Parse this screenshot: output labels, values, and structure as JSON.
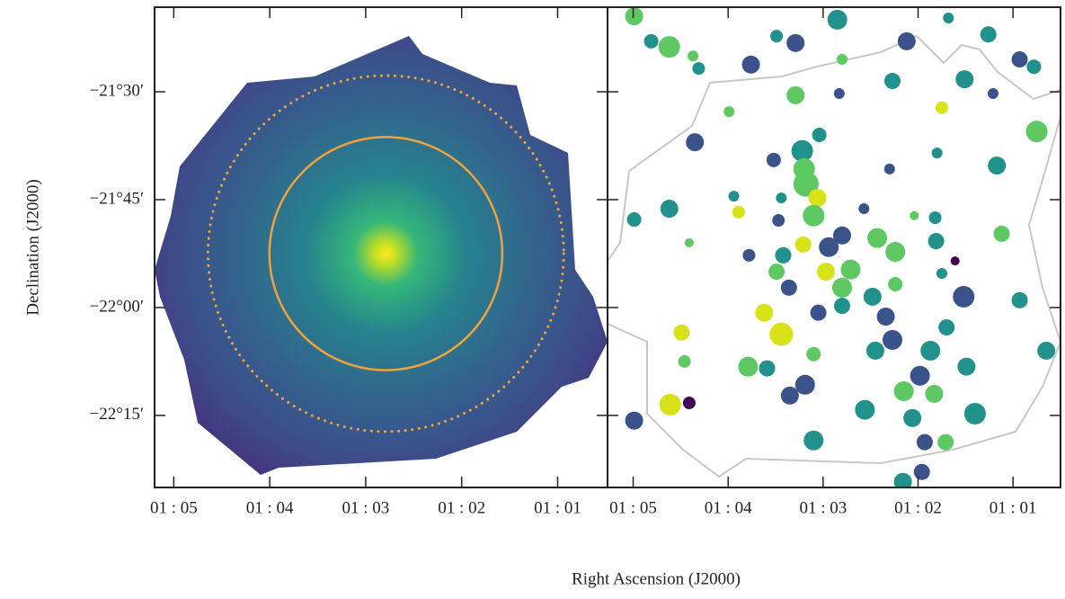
{
  "xlabel": "Right Ascension (J2000)",
  "chart_data": [
    {
      "type": "image",
      "ylabel": "Declination (J2000)",
      "xlim": [
        65.2,
        60.48
      ],
      "ylim": [
        -22.417,
        -21.304
      ],
      "xticks": [
        {
          "value": 65,
          "label": "01 : 05"
        },
        {
          "value": 64,
          "label": "01 : 04"
        },
        {
          "value": 63,
          "label": "01 : 03"
        },
        {
          "value": 62,
          "label": "01 : 02"
        },
        {
          "value": 61,
          "label": "01 : 01"
        }
      ],
      "yticks": [
        {
          "value": -21.5,
          "label": "−21°30′"
        },
        {
          "value": -21.75,
          "label": "−21°45′"
        },
        {
          "value": -22,
          "label": "−22°00′"
        },
        {
          "value": -22.25,
          "label": "−22°15′"
        }
      ],
      "circles": {
        "x": [
          62.79,
          62.79
        ],
        "y": [
          -21.875,
          -21.875
        ],
        "radius": [
          0.27,
          0.4125
        ],
        "style": [
          "solid",
          "dotted"
        ],
        "color": "#f2a23a"
      }
    },
    {
      "type": "scatter",
      "xlim": [
        65.27,
        60.5
      ],
      "ylim": [
        -22.417,
        -21.304
      ],
      "xticks": [
        {
          "value": 65,
          "label": "01 : 05"
        },
        {
          "value": 64,
          "label": "01 : 04"
        },
        {
          "value": 63,
          "label": "01 : 03"
        },
        {
          "value": 62,
          "label": "01 : 02"
        },
        {
          "value": 61,
          "label": "01 : 01"
        }
      ],
      "x": [
        64.99,
        64.62,
        64.81,
        64.37,
        64.31,
        63.76,
        63.49,
        63.29,
        62.85,
        62.8,
        62.12,
        61.68,
        61.26,
        60.93,
        60.78,
        62.27,
        61.51,
        61.21,
        63.29,
        62.83,
        61.75,
        60.75,
        63.99,
        64.35,
        63.04,
        63.22,
        63.52,
        61.8,
        61.17,
        62.3,
        63.2,
        63.18,
        63.06,
        63.44,
        63.94,
        64.62,
        63.89,
        64.99,
        64.41,
        63.47,
        63.1,
        62.57,
        62.04,
        61.82,
        61.12,
        61.81,
        62.8,
        62.43,
        62.94,
        62.24,
        62.71,
        62.97,
        63.21,
        63.42,
        63.78,
        63.49,
        61.61,
        61.75,
        62.24,
        62.8,
        63.36,
        63.62,
        62.8,
        62.48,
        61.52,
        60.93,
        63.44,
        63.05,
        62.34,
        61.7,
        64.49,
        64.46,
        63.79,
        63.59,
        63.1,
        62.45,
        62.27,
        61.87,
        61.49,
        60.65,
        64.61,
        64.41,
        64.99,
        63.35,
        63.19,
        62.56,
        62.15,
        61.98,
        61.83,
        61.4,
        62.06,
        63.1,
        61.93,
        61.71,
        61.96,
        62.16
      ],
      "values": [
        -21.325,
        -21.396,
        -21.383,
        -21.417,
        -21.446,
        -21.437,
        -21.371,
        -21.387,
        -21.333,
        -21.425,
        -21.383,
        -21.329,
        -21.367,
        -21.425,
        -21.442,
        -21.475,
        -21.471,
        -21.504,
        -21.508,
        -21.504,
        -21.537,
        -21.592,
        -21.546,
        -21.617,
        -21.6,
        -21.637,
        -21.658,
        -21.642,
        -21.671,
        -21.679,
        -21.679,
        -21.714,
        -21.746,
        -21.746,
        -21.742,
        -21.771,
        -21.779,
        -21.796,
        -21.85,
        -21.798,
        -21.787,
        -21.771,
        -21.787,
        -21.792,
        -21.829,
        -21.846,
        -21.833,
        -21.839,
        -21.86,
        -21.871,
        -21.912,
        -21.917,
        -21.854,
        -21.879,
        -21.879,
        -21.917,
        -21.892,
        -21.921,
        -21.946,
        -21.954,
        -21.954,
        -22.012,
        -21.996,
        -21.975,
        -21.975,
        -21.983,
        -22.062,
        -22.012,
        -22.021,
        -22.046,
        -22.058,
        -22.125,
        -22.137,
        -22.141,
        -22.108,
        -22.1,
        -22.075,
        -22.1,
        -22.137,
        -22.1,
        -22.225,
        -22.221,
        -22.262,
        -22.204,
        -22.179,
        -22.237,
        -22.194,
        -22.158,
        -22.2,
        -22.246,
        -22.256,
        -22.308,
        -22.312,
        -22.312,
        -22.381,
        -22.404
      ],
      "sizes": [
        10,
        12,
        8,
        6,
        7,
        10,
        7,
        10,
        11,
        6,
        10,
        6,
        9,
        9,
        8,
        9,
        10,
        6,
        10,
        6,
        7,
        12,
        6,
        10,
        8,
        12,
        8,
        6,
        10,
        6,
        12,
        14,
        10,
        6,
        6,
        10,
        7,
        8,
        5,
        7,
        12,
        6,
        5,
        7,
        9,
        9,
        10,
        11,
        11,
        11,
        11,
        10,
        9,
        9,
        7,
        9,
        5,
        6,
        8,
        11,
        9,
        10,
        9,
        10,
        12,
        9,
        13,
        9,
        10,
        9,
        9,
        7,
        11,
        9,
        8,
        10,
        11,
        11,
        10,
        10,
        12,
        7,
        10,
        10,
        11,
        11,
        11,
        11,
        10,
        12,
        10,
        11,
        9,
        9,
        9,
        10
      ],
      "colors": [
        "#5ec962",
        "#5ec962",
        "#21918c",
        "#5ec962",
        "#21918c",
        "#3b528b",
        "#21918c",
        "#3b528b",
        "#21918c",
        "#5ec962",
        "#3b528b",
        "#21918c",
        "#21918c",
        "#3b528b",
        "#21918c",
        "#21918c",
        "#21918c",
        "#3b528b",
        "#5ec962",
        "#3b528b",
        "#d8e219",
        "#5ec962",
        "#5ec962",
        "#3b528b",
        "#21918c",
        "#21918c",
        "#3b528b",
        "#21918c",
        "#21918c",
        "#3b528b",
        "#5ec962",
        "#5ec962",
        "#d8e219",
        "#21918c",
        "#21918c",
        "#21918c",
        "#d8e219",
        "#21918c",
        "#5ec962",
        "#3b528b",
        "#5ec962",
        "#3b528b",
        "#5ec962",
        "#21918c",
        "#5ec962",
        "#21918c",
        "#3b528b",
        "#5ec962",
        "#3b528b",
        "#5ec962",
        "#5ec962",
        "#d8e219",
        "#d8e219",
        "#21918c",
        "#3b528b",
        "#5ec962",
        "#440154",
        "#21918c",
        "#5ec962",
        "#5ec962",
        "#3b528b",
        "#d8e219",
        "#21918c",
        "#21918c",
        "#3b528b",
        "#21918c",
        "#d8e219",
        "#3b528b",
        "#3b528b",
        "#21918c",
        "#d8e219",
        "#5ec962",
        "#5ec962",
        "#21918c",
        "#5ec962",
        "#21918c",
        "#3b528b",
        "#21918c",
        "#21918c",
        "#21918c",
        "#d8e219",
        "#440154",
        "#3b528b",
        "#3b528b",
        "#3b528b",
        "#21918c",
        "#5ec962",
        "#3b528b",
        "#5ec962",
        "#21918c",
        "#21918c",
        "#21918c",
        "#3b528b",
        "#5ec962",
        "#3b528b",
        "#21918c"
      ]
    }
  ]
}
